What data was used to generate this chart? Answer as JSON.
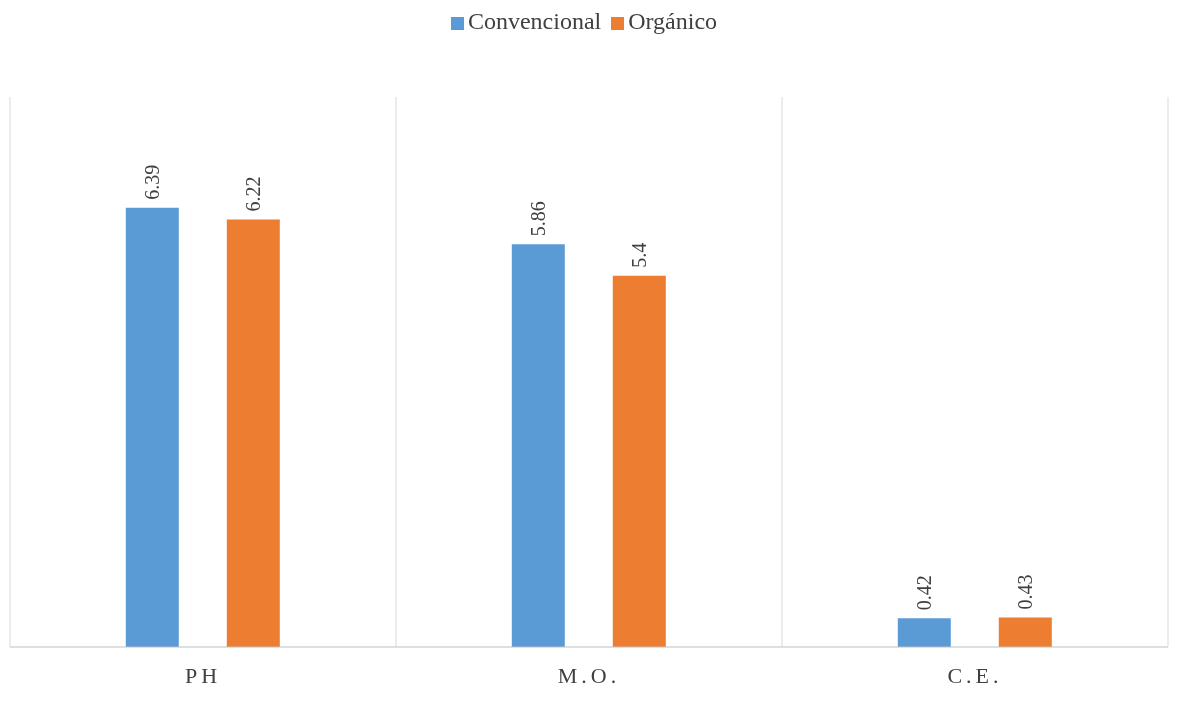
{
  "chart_data": {
    "type": "bar",
    "categories": [
      "PH",
      "M.O.",
      "C.E."
    ],
    "series": [
      {
        "name": "Convencional",
        "color": "#5b9bd5",
        "values": [
          6.39,
          5.86,
          0.42
        ]
      },
      {
        "name": "Orgánico",
        "color": "#ed7d31",
        "values": [
          6.22,
          5.4,
          0.43
        ]
      }
    ],
    "data_labels": true,
    "grid": "x",
    "legend": "top"
  }
}
